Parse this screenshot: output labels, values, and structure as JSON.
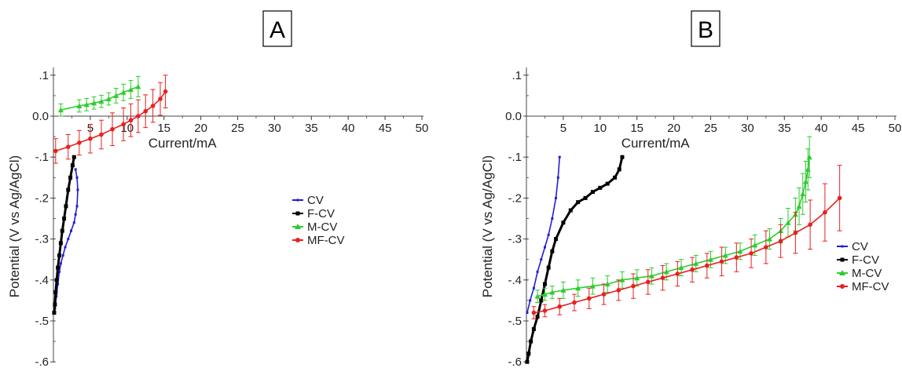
{
  "chart_data": [
    {
      "type": "line",
      "title": "A",
      "xlabel": "Current/mA",
      "ylabel": "Potential (V vs Ag/AgCl)",
      "xlim": [
        0,
        50
      ],
      "ylim": [
        -0.6,
        0.1
      ],
      "x_ticks": [
        5,
        10,
        15,
        20,
        25,
        30,
        35,
        40,
        45,
        50
      ],
      "y_ticks": [
        0.1,
        0.0,
        -0.1,
        -0.2,
        -0.3,
        -0.4,
        -0.5,
        -0.6
      ],
      "grid": false,
      "legend_position": "center-right",
      "series": [
        {
          "name": "CV",
          "color": "#1f1fd6",
          "marker": "line",
          "x": [
            0.2,
            0.4,
            0.6,
            0.8,
            1.0,
            1.3,
            1.6,
            2.0,
            2.4,
            2.8,
            3.0,
            3.2,
            3.3,
            3.2,
            3.0
          ],
          "y": [
            -0.47,
            -0.44,
            -0.41,
            -0.38,
            -0.36,
            -0.34,
            -0.32,
            -0.3,
            -0.28,
            -0.26,
            -0.24,
            -0.22,
            -0.18,
            -0.15,
            -0.13
          ]
        },
        {
          "name": "F-CV",
          "color": "#000000",
          "marker": "square",
          "x": [
            0.1,
            0.2,
            0.3,
            0.45,
            0.6,
            0.8,
            1.0,
            1.2,
            1.45,
            1.7,
            2.0,
            2.3,
            2.6,
            2.8
          ],
          "y": [
            -0.48,
            -0.46,
            -0.43,
            -0.4,
            -0.37,
            -0.34,
            -0.31,
            -0.28,
            -0.25,
            -0.22,
            -0.18,
            -0.15,
            -0.12,
            -0.1
          ]
        },
        {
          "name": "M-CV",
          "color": "#2ecc2e",
          "marker": "triangle",
          "x": [
            1.0,
            3.5,
            4.5,
            5.5,
            6.5,
            7.5,
            8.5,
            9.5,
            10.5,
            11.5
          ],
          "y": [
            0.015,
            0.025,
            0.028,
            0.032,
            0.036,
            0.042,
            0.05,
            0.058,
            0.065,
            0.072
          ],
          "err": [
            0.015,
            0.015,
            0.015,
            0.015,
            0.015,
            0.015,
            0.018,
            0.02,
            0.022,
            0.025
          ]
        },
        {
          "name": "MF-CV",
          "color": "#e82020",
          "marker": "circle",
          "x": [
            0.3,
            2.0,
            3.5,
            5.0,
            6.5,
            8.0,
            9.5,
            10.5,
            11.5,
            12.5,
            13.5,
            14.5,
            15.2
          ],
          "y": [
            -0.085,
            -0.075,
            -0.065,
            -0.055,
            -0.045,
            -0.032,
            -0.02,
            -0.01,
            0.0,
            0.012,
            0.025,
            0.042,
            0.06
          ],
          "err": [
            0.03,
            0.03,
            0.03,
            0.035,
            0.035,
            0.04,
            0.04,
            0.04,
            0.04,
            0.04,
            0.04,
            0.04,
            0.04
          ]
        }
      ]
    },
    {
      "type": "line",
      "title": "B",
      "xlabel": "Current/mA",
      "ylabel": "Potential (V vs Ag/AgCl)",
      "xlim": [
        0,
        50
      ],
      "ylim": [
        -0.6,
        0.1
      ],
      "x_ticks": [
        5,
        10,
        15,
        20,
        25,
        30,
        35,
        40,
        45,
        50
      ],
      "y_ticks": [
        0.1,
        0.0,
        -0.1,
        -0.2,
        -0.3,
        -0.4,
        -0.5,
        -0.6
      ],
      "grid": false,
      "legend_position": "bottom-right",
      "series": [
        {
          "name": "CV",
          "color": "#1f1fd6",
          "marker": "line",
          "x": [
            0.1,
            0.5,
            1.0,
            1.5,
            2.0,
            2.5,
            3.0,
            3.5,
            4.0,
            4.3,
            4.5
          ],
          "y": [
            -0.48,
            -0.45,
            -0.42,
            -0.38,
            -0.35,
            -0.32,
            -0.29,
            -0.25,
            -0.2,
            -0.15,
            -0.1
          ]
        },
        {
          "name": "F-CV",
          "color": "#000000",
          "marker": "square",
          "x": [
            0.1,
            0.3,
            0.6,
            1.0,
            1.5,
            2.0,
            2.5,
            3.0,
            3.5,
            4.0,
            5.0,
            6.0,
            7.0,
            8.0,
            9.0,
            10.0,
            11.0,
            12.0,
            12.6,
            13.0
          ],
          "y": [
            -0.6,
            -0.58,
            -0.55,
            -0.52,
            -0.49,
            -0.45,
            -0.41,
            -0.37,
            -0.33,
            -0.3,
            -0.26,
            -0.23,
            -0.21,
            -0.2,
            -0.185,
            -0.175,
            -0.165,
            -0.15,
            -0.13,
            -0.1
          ]
        },
        {
          "name": "M-CV",
          "color": "#2ecc2e",
          "marker": "triangle",
          "x": [
            1.5,
            2.5,
            3.5,
            5.0,
            7.0,
            9.0,
            11.0,
            13.0,
            15.0,
            17.0,
            19.0,
            21.0,
            23.0,
            25.0,
            27.0,
            29.0,
            31.0,
            33.0,
            34.5,
            35.5,
            36.5,
            37.0,
            37.5,
            37.9,
            38.2,
            38.4
          ],
          "y": [
            -0.44,
            -0.435,
            -0.43,
            -0.425,
            -0.42,
            -0.415,
            -0.41,
            -0.4,
            -0.395,
            -0.39,
            -0.38,
            -0.37,
            -0.36,
            -0.35,
            -0.34,
            -0.33,
            -0.315,
            -0.3,
            -0.28,
            -0.26,
            -0.24,
            -0.22,
            -0.19,
            -0.16,
            -0.13,
            -0.1
          ],
          "err": [
            0.015,
            0.015,
            0.015,
            0.02,
            0.02,
            0.02,
            0.02,
            0.02,
            0.02,
            0.02,
            0.02,
            0.02,
            0.02,
            0.02,
            0.02,
            0.02,
            0.025,
            0.025,
            0.03,
            0.035,
            0.04,
            0.045,
            0.05,
            0.05,
            0.05,
            0.05
          ]
        },
        {
          "name": "MF-CV",
          "color": "#e82020",
          "marker": "circle",
          "x": [
            1.0,
            2.5,
            4.5,
            6.5,
            8.5,
            10.5,
            12.5,
            14.5,
            16.5,
            18.5,
            20.5,
            22.5,
            24.5,
            26.5,
            28.5,
            30.5,
            32.5,
            34.5,
            36.5,
            38.5,
            40.5,
            42.5
          ],
          "y": [
            -0.48,
            -0.475,
            -0.465,
            -0.455,
            -0.445,
            -0.435,
            -0.425,
            -0.415,
            -0.405,
            -0.395,
            -0.385,
            -0.375,
            -0.365,
            -0.355,
            -0.345,
            -0.335,
            -0.32,
            -0.305,
            -0.285,
            -0.265,
            -0.235,
            -0.2
          ],
          "err": [
            0.015,
            0.015,
            0.02,
            0.02,
            0.025,
            0.025,
            0.025,
            0.03,
            0.03,
            0.03,
            0.03,
            0.03,
            0.03,
            0.035,
            0.035,
            0.035,
            0.04,
            0.04,
            0.05,
            0.06,
            0.07,
            0.08
          ]
        }
      ]
    }
  ]
}
